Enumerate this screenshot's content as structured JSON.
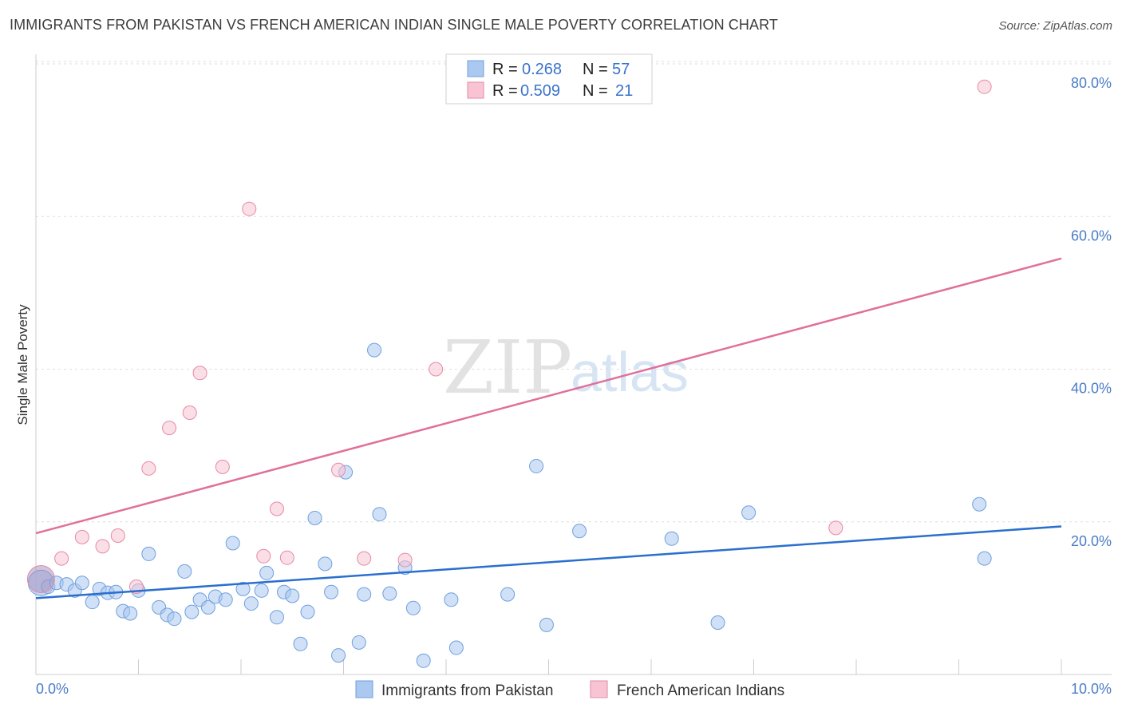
{
  "title": "IMMIGRANTS FROM PAKISTAN VS FRENCH AMERICAN INDIAN SINGLE MALE POVERTY CORRELATION CHART",
  "source": "Source: ZipAtlas.com",
  "watermark": {
    "zip": "ZIP",
    "atlas": "atlas"
  },
  "legend": {
    "r_label": "R =",
    "n_label": "N =",
    "rows": [
      {
        "r": "0.268",
        "n": "57",
        "color": "#aac8f0"
      },
      {
        "r": "0.509",
        "n": "21",
        "color": "#f6b8cb"
      }
    ]
  },
  "colors": {
    "blue_fill": "#aac8f0",
    "blue_stroke": "#6f9fdc",
    "blue_line": "#2a6fce",
    "pink_fill": "#f8c4d4",
    "pink_stroke": "#e58aa6",
    "pink_line": "#e0709a",
    "tick": "#4a7cc8"
  },
  "chart_data": {
    "type": "scatter",
    "title": "IMMIGRANTS FROM PAKISTAN VS FRENCH AMERICAN INDIAN SINGLE MALE POVERTY CORRELATION CHART",
    "xlabel": "",
    "ylabel": "Single Male Poverty",
    "xlim": [
      0,
      10
    ],
    "ylim": [
      0,
      80
    ],
    "x_ticks": [
      "0.0%",
      "10.0%"
    ],
    "y_ticks": [
      {
        "value": 20,
        "label": "20.0%"
      },
      {
        "value": 40,
        "label": "40.0%"
      },
      {
        "value": 60,
        "label": "60.0%"
      },
      {
        "value": 80,
        "label": "80.0%"
      }
    ],
    "series": [
      {
        "name": "Immigrants from Pakistan",
        "R": 0.268,
        "N": 57,
        "trend": [
          [
            0,
            10.0
          ],
          [
            10,
            19.4
          ]
        ],
        "points": [
          [
            0.05,
            12.0
          ],
          [
            0.12,
            11.5
          ],
          [
            0.2,
            12.0
          ],
          [
            0.3,
            11.8
          ],
          [
            0.38,
            11.0
          ],
          [
            0.45,
            12.0
          ],
          [
            0.55,
            9.5
          ],
          [
            0.62,
            11.2
          ],
          [
            0.7,
            10.7
          ],
          [
            0.78,
            10.8
          ],
          [
            0.85,
            8.3
          ],
          [
            0.92,
            8.0
          ],
          [
            1.0,
            11.0
          ],
          [
            1.1,
            15.8
          ],
          [
            1.2,
            8.8
          ],
          [
            1.28,
            7.8
          ],
          [
            1.35,
            7.3
          ],
          [
            1.45,
            13.5
          ],
          [
            1.52,
            8.2
          ],
          [
            1.6,
            9.8
          ],
          [
            1.68,
            8.8
          ],
          [
            1.75,
            10.2
          ],
          [
            1.85,
            9.8
          ],
          [
            1.92,
            17.2
          ],
          [
            2.02,
            11.2
          ],
          [
            2.1,
            9.3
          ],
          [
            2.2,
            11.0
          ],
          [
            2.25,
            13.3
          ],
          [
            2.35,
            7.5
          ],
          [
            2.42,
            10.8
          ],
          [
            2.5,
            10.3
          ],
          [
            2.58,
            4.0
          ],
          [
            2.65,
            8.2
          ],
          [
            2.72,
            20.5
          ],
          [
            2.82,
            14.5
          ],
          [
            2.88,
            10.8
          ],
          [
            2.95,
            2.5
          ],
          [
            3.02,
            26.5
          ],
          [
            3.15,
            4.2
          ],
          [
            3.2,
            10.5
          ],
          [
            3.3,
            42.5
          ],
          [
            3.35,
            21.0
          ],
          [
            3.45,
            10.6
          ],
          [
            3.6,
            14.0
          ],
          [
            3.68,
            8.7
          ],
          [
            3.78,
            1.8
          ],
          [
            4.05,
            9.8
          ],
          [
            4.1,
            3.5
          ],
          [
            4.6,
            10.5
          ],
          [
            4.88,
            27.3
          ],
          [
            4.98,
            6.5
          ],
          [
            5.3,
            18.8
          ],
          [
            6.2,
            17.8
          ],
          [
            6.65,
            6.8
          ],
          [
            6.95,
            21.2
          ],
          [
            9.2,
            22.3
          ],
          [
            9.25,
            15.2
          ]
        ]
      },
      {
        "name": "French American Indians",
        "R": 0.509,
        "N": 21,
        "trend": [
          [
            0,
            18.5
          ],
          [
            10,
            54.5
          ]
        ],
        "points": [
          [
            0.25,
            15.2
          ],
          [
            0.45,
            18.0
          ],
          [
            0.65,
            16.8
          ],
          [
            0.8,
            18.2
          ],
          [
            0.98,
            11.5
          ],
          [
            1.1,
            27.0
          ],
          [
            1.3,
            32.3
          ],
          [
            1.5,
            34.3
          ],
          [
            1.6,
            39.5
          ],
          [
            1.82,
            27.2
          ],
          [
            2.08,
            61.0
          ],
          [
            2.22,
            15.5
          ],
          [
            2.35,
            21.7
          ],
          [
            2.45,
            15.3
          ],
          [
            2.95,
            26.8
          ],
          [
            3.2,
            15.2
          ],
          [
            3.6,
            15.0
          ],
          [
            3.9,
            40.0
          ],
          [
            7.8,
            19.2
          ],
          [
            9.25,
            77.0
          ],
          [
            0.05,
            12.5
          ]
        ]
      }
    ]
  }
}
